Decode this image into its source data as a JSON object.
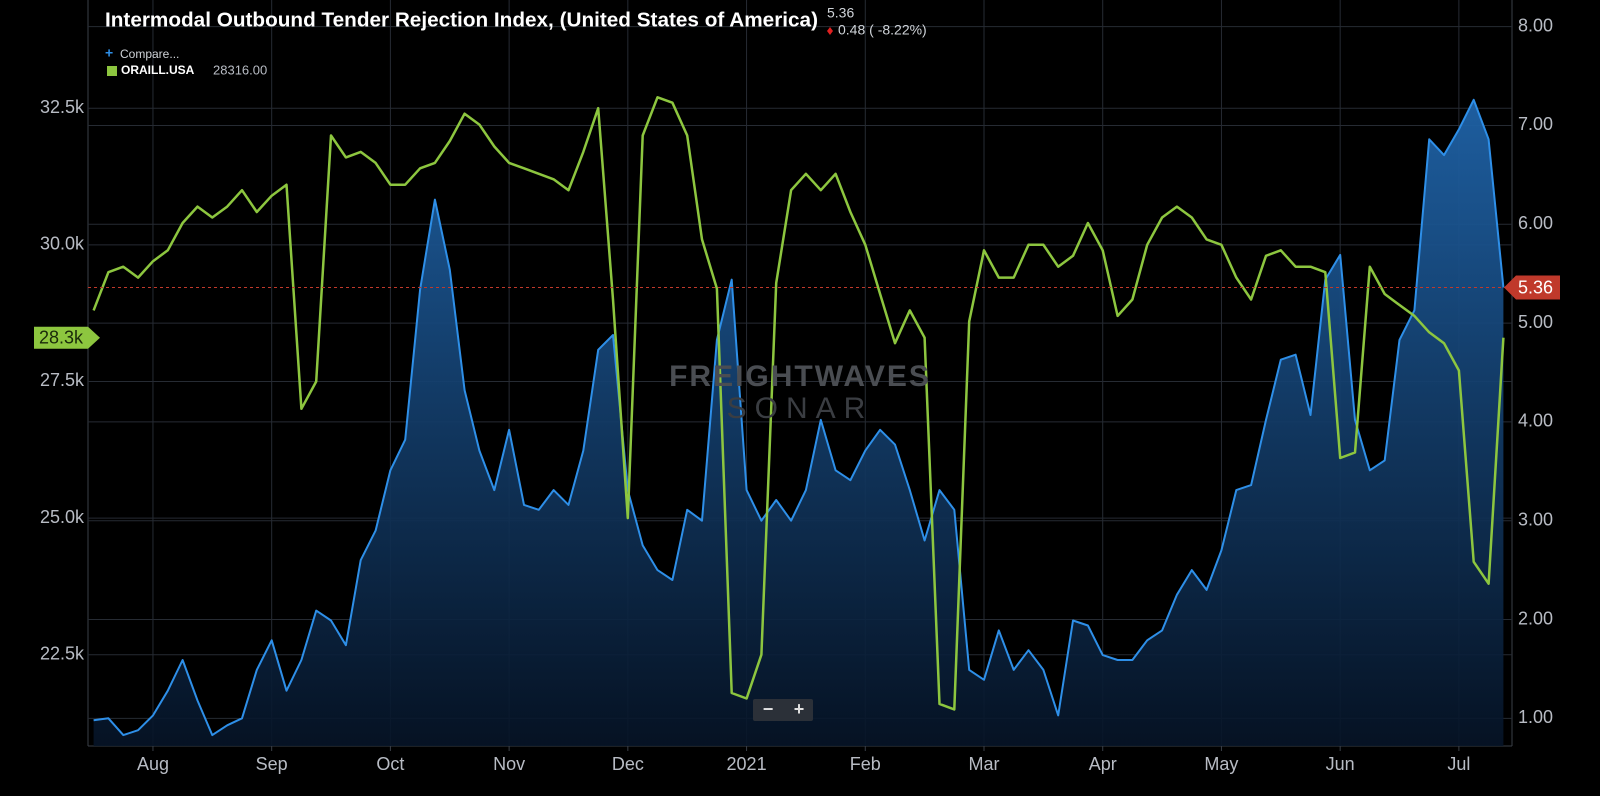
{
  "chart_data": {
    "type": "line",
    "title": "Intermodal Outbound Tender Rejection Index, (United States of America)",
    "latest_value": 5.36,
    "change": "0.48 ( -8.22%)",
    "compare": "Compare...",
    "legend_value": "28316.00",
    "left_badge": "28.3k",
    "watermark": [
      "FREIGHTWAVES",
      "SONAR"
    ],
    "zoom_controls": [
      "−",
      "+"
    ],
    "categories": [
      null,
      null,
      null,
      null,
      "Aug",
      null,
      null,
      null,
      null,
      null,
      null,
      null,
      "Sep",
      null,
      null,
      null,
      null,
      null,
      null,
      null,
      "Oct",
      null,
      null,
      null,
      null,
      null,
      null,
      null,
      "Nov",
      null,
      null,
      null,
      null,
      null,
      null,
      null,
      "Dec",
      null,
      null,
      null,
      null,
      null,
      null,
      null,
      "2021",
      null,
      null,
      null,
      null,
      null,
      null,
      null,
      "Feb",
      null,
      null,
      null,
      null,
      null,
      null,
      null,
      "Mar",
      null,
      null,
      null,
      null,
      null,
      null,
      null,
      "Apr",
      null,
      null,
      null,
      null,
      null,
      null,
      null,
      "May",
      null,
      null,
      null,
      null,
      null,
      null,
      null,
      "Jun",
      null,
      null,
      null,
      null,
      null,
      null,
      null,
      "Jul",
      null,
      null,
      null
    ],
    "series": [
      {
        "type": "area",
        "color": "#2e8fe8",
        "axis": "y2",
        "values": [
          0.98,
          1.0,
          0.83,
          0.88,
          1.03,
          1.28,
          1.59,
          1.18,
          0.83,
          0.93,
          1.0,
          1.49,
          1.79,
          1.28,
          1.59,
          2.09,
          1.99,
          1.74,
          2.6,
          2.9,
          3.51,
          3.82,
          5.34,
          6.25,
          5.54,
          4.32,
          3.71,
          3.31,
          3.92,
          3.16,
          3.11,
          3.31,
          3.16,
          3.71,
          4.73,
          4.88,
          3.31,
          2.75,
          2.5,
          2.4,
          3.11,
          3.0,
          4.83,
          5.44,
          3.31,
          3.0,
          3.21,
          3.0,
          3.31,
          4.02,
          3.51,
          3.41,
          3.71,
          3.92,
          3.77,
          3.31,
          2.8,
          3.31,
          3.11,
          1.49,
          1.39,
          1.89,
          1.49,
          1.69,
          1.49,
          1.03,
          1.99,
          1.94,
          1.64,
          1.59,
          1.59,
          1.79,
          1.89,
          2.25,
          2.5,
          2.3,
          2.7,
          3.31,
          3.36,
          4.02,
          4.63,
          4.68,
          4.07,
          5.44,
          5.69,
          4.02,
          3.51,
          3.61,
          4.83,
          5.13,
          6.86,
          6.7,
          6.96,
          7.26,
          6.86,
          5.36
        ]
      },
      {
        "type": "line",
        "name": "ORAILL.USA",
        "color": "#8dc63f",
        "values": [
          28800,
          29500,
          29600,
          29400,
          29700,
          29900,
          30400,
          30700,
          30500,
          30700,
          31000,
          30600,
          30900,
          31100,
          27000,
          27500,
          32000,
          31600,
          31700,
          31500,
          31100,
          31100,
          31400,
          31500,
          31900,
          32400,
          32200,
          31800,
          31500,
          31400,
          31300,
          31200,
          31000,
          31700,
          32500,
          29000,
          25000,
          32000,
          32700,
          32600,
          32000,
          30100,
          29200,
          21800,
          21700,
          22500,
          29300,
          31000,
          31300,
          31000,
          31300,
          30600,
          30000,
          29100,
          28200,
          28800,
          28300,
          21600,
          21500,
          28600,
          29900,
          29400,
          29400,
          30000,
          30000,
          29600,
          29800,
          30400,
          29900,
          28700,
          29000,
          30000,
          30500,
          30700,
          30500,
          30100,
          30000,
          29400,
          29000,
          29800,
          29900,
          29600,
          29600,
          29500,
          26100,
          26200,
          29600,
          29100,
          28900,
          28700,
          28400,
          28200,
          27700,
          24200,
          23800,
          28300
        ]
      }
    ],
    "ylim": [
      20830,
      34480
    ],
    "yticks": [
      {
        "value": 22500,
        "label": "22.5k"
      },
      {
        "value": 25000,
        "label": "25.0k"
      },
      {
        "value": 27500,
        "label": "27.5k"
      },
      {
        "value": 30000,
        "label": "30.0k"
      },
      {
        "value": 32500,
        "label": "32.5k"
      }
    ],
    "y2lim": [
      0.72,
      8.27
    ],
    "y2ticks": [
      {
        "value": 1,
        "label": "1.00"
      },
      {
        "value": 2,
        "label": "2.00"
      },
      {
        "value": 3,
        "label": "3.00"
      },
      {
        "value": 4,
        "label": "4.00"
      },
      {
        "value": 5,
        "label": "5.00"
      },
      {
        "value": 6,
        "label": "6.00"
      },
      {
        "value": 7,
        "label": "7.00"
      },
      {
        "value": 8,
        "label": "8.00"
      }
    ],
    "grid": true
  }
}
